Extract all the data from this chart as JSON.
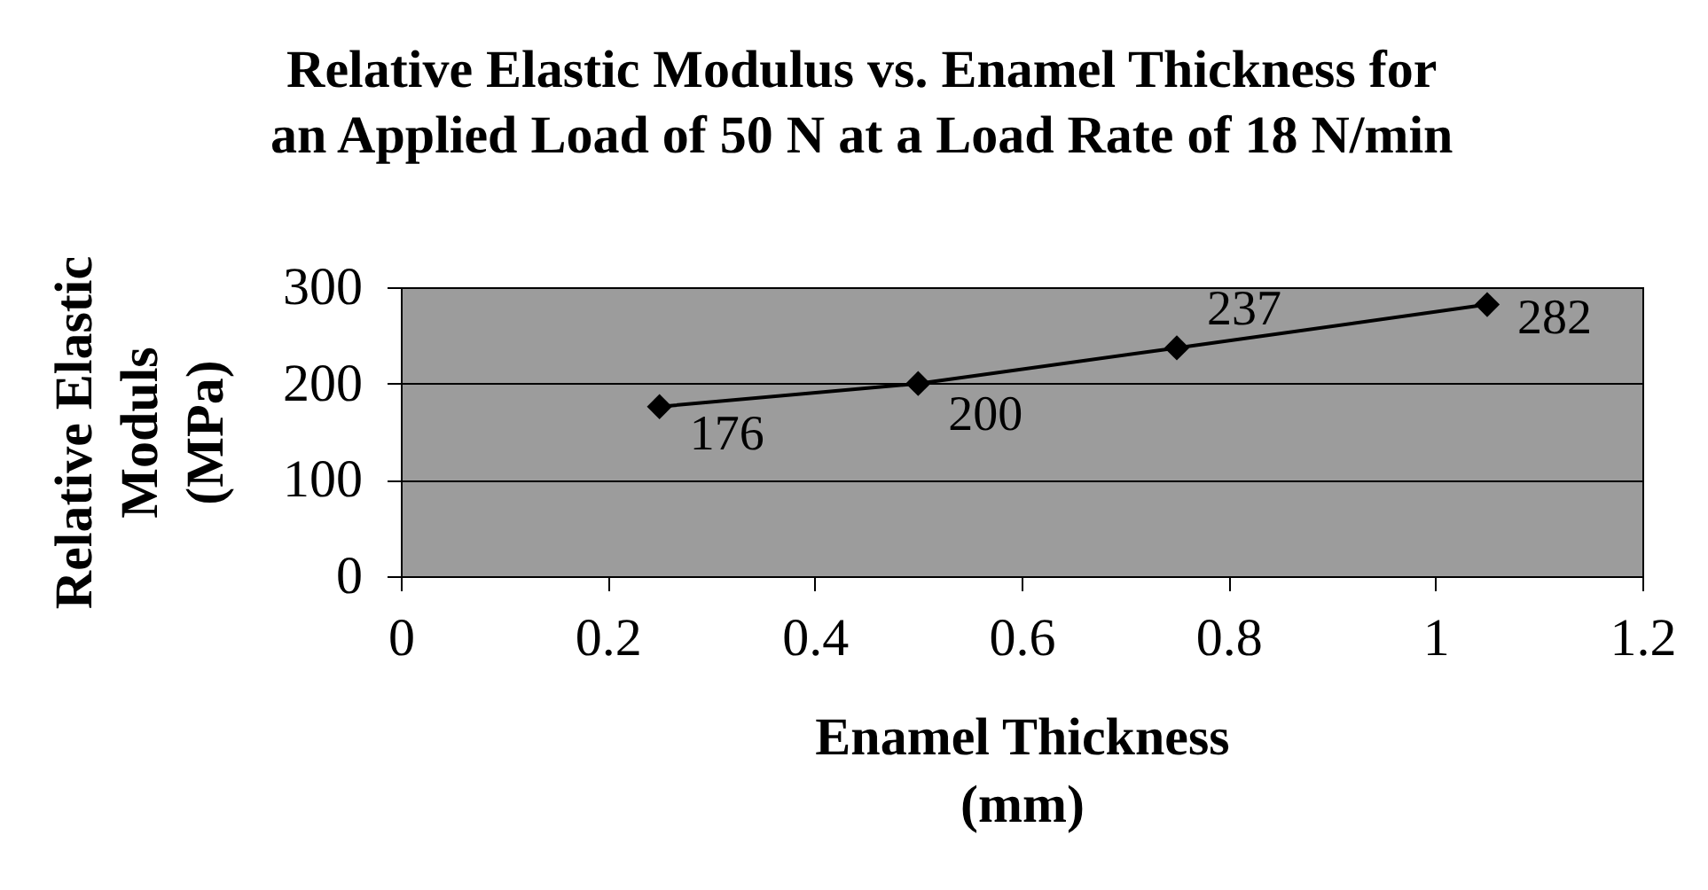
{
  "chart_data": {
    "type": "line",
    "title": "Relative Elastic Modulus vs. Enamel Thickness for\nan Applied Load of 50 N at a Load Rate of 18 N/min",
    "xlabel": "Enamel Thickness\n(mm)",
    "ylabel": "Relative Elastic\nModuls\n(MPa)",
    "x": [
      0.25,
      0.5,
      0.75,
      1.05
    ],
    "series": [
      {
        "color": "#000000",
        "values": [
          176,
          200,
          237,
          282
        ]
      }
    ],
    "xlim": [
      0,
      1.2
    ],
    "xticks": [
      0,
      0.2,
      0.4,
      0.6,
      0.8,
      1,
      1.2
    ],
    "ylim": [
      0,
      300
    ],
    "yticks": [
      0,
      100,
      200,
      300
    ],
    "grid": "y",
    "marker": "diamond",
    "data_labels": true
  }
}
